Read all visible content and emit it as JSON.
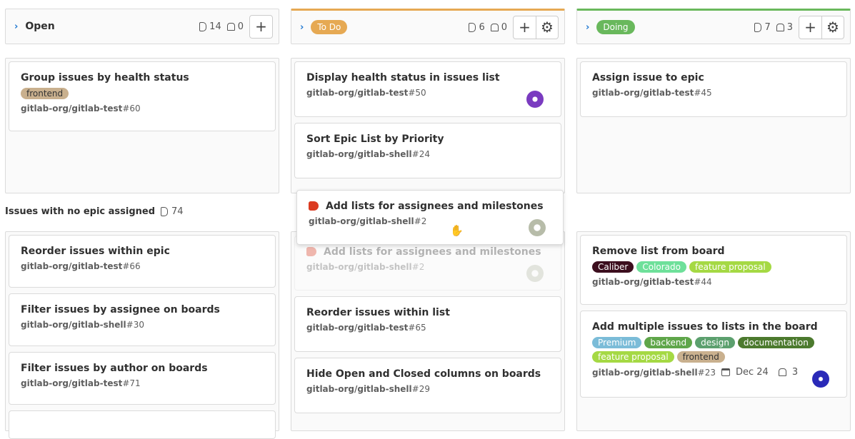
{
  "lists": [
    {
      "title": "Open",
      "issues": "14",
      "weight": "0"
    },
    {
      "title": "To Do",
      "color": "#e6a953",
      "issues": "6",
      "weight": "0"
    },
    {
      "title": "Doing",
      "color": "#69b85c",
      "issues": "7",
      "weight": "3"
    }
  ],
  "swimlane": {
    "label": "Issues with no epic assigned",
    "count": "74"
  },
  "cards": {
    "open1": {
      "title": "Group issues by health status",
      "labels": [
        {
          "text": "frontend",
          "color": "#c9b08e"
        }
      ],
      "path": "gitlab-org/gitlab-test",
      "num": "#60"
    },
    "todo1": {
      "title": "Display health status in issues list",
      "path": "gitlab-org/gitlab-test",
      "num": "#50"
    },
    "todo2": {
      "title": "Sort Epic List by Priority",
      "path": "gitlab-org/gitlab-shell",
      "num": "#24"
    },
    "doing1": {
      "title": "Assign issue to epic",
      "path": "gitlab-org/gitlab-test",
      "num": "#45"
    },
    "drag": {
      "title": "Add lists for assignees and milestones",
      "path": "gitlab-org/gitlab-shell",
      "num": "#2"
    },
    "open2": {
      "title": "Reorder issues within epic",
      "path": "gitlab-org/gitlab-test",
      "num": "#66"
    },
    "open3": {
      "title": "Filter issues by assignee on boards",
      "path": "gitlab-org/gitlab-shell",
      "num": "#30"
    },
    "open4": {
      "title": "Filter issues by author on boards",
      "path": "gitlab-org/gitlab-test",
      "num": "#71"
    },
    "todo3": {
      "title": "Reorder issues within list",
      "path": "gitlab-org/gitlab-test",
      "num": "#65"
    },
    "todo4": {
      "title": "Hide Open and Closed columns on boards",
      "path": "gitlab-org/gitlab-shell",
      "num": "#29"
    },
    "doing2": {
      "title": "Remove list from board",
      "labels": [
        {
          "text": "Caliber",
          "color": "#3c0e1e"
        },
        {
          "text": "Colorado",
          "color": "#6ee09a"
        },
        {
          "text": "feature proposal",
          "color": "#a5d944"
        }
      ],
      "path": "gitlab-org/gitlab-test",
      "num": "#44"
    },
    "doing3": {
      "title": "Add multiple issues to lists in the board",
      "labels": [
        {
          "text": "Premium",
          "color": "#7bbcd8"
        },
        {
          "text": "backend",
          "color": "#5fa64a"
        },
        {
          "text": "design",
          "color": "#5ca06e"
        },
        {
          "text": "documentation",
          "color": "#4c7a2e"
        },
        {
          "text": "feature proposal",
          "color": "#a5d944"
        },
        {
          "text": "frontend",
          "color": "#c9b08e"
        }
      ],
      "path": "gitlab-org/gitlab-shell",
      "num": "#23",
      "due": "Dec 24",
      "weight": "3"
    }
  }
}
